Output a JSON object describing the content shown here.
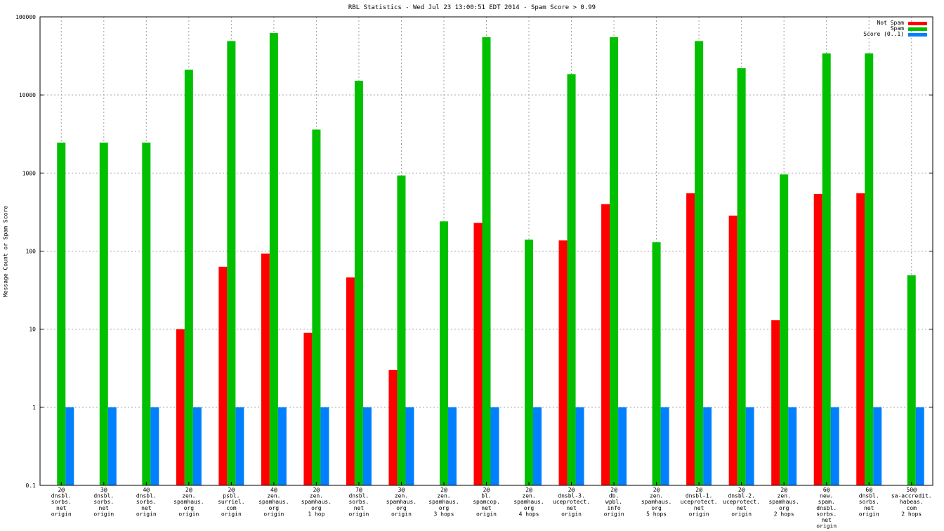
{
  "chart_data": {
    "type": "bar",
    "title": "RBL Statistics - Wed Jul 23 13:00:51 EDT 2014 - Spam Score > 0.99",
    "ylabel": "Message Count or Spam Score",
    "xlabel": "",
    "yscale": "log",
    "ylim": [
      0.1,
      100000
    ],
    "yticks": [
      "0.1",
      "1",
      "10",
      "100",
      "1000",
      "10000",
      "100000"
    ],
    "grid": true,
    "legend_position": "top-right",
    "categories": [
      "2@ dnsbl. sorbs. net origin",
      "3@ dnsbl. sorbs. net origin",
      "4@ dnsbl. sorbs. net origin",
      "2@ zen. spamhaus. org origin",
      "2@ psbl. surriel. com origin",
      "4@ zen. spamhaus. org origin",
      "2@ zen. spamhaus. org 1 hop",
      "7@ dnsbl. sorbs. net origin",
      "3@ zen. spamhaus. org origin",
      "2@ zen. spamhaus. org 3 hops",
      "2@ bl. spamcop. net origin",
      "2@ zen. spamhaus. org 4 hops",
      "2@ dnsbl-3. uceprotect. net origin",
      "2@ db. wpbl. info origin",
      "2@ zen. spamhaus. org 5 hops",
      "2@ dnsbl-1. uceprotect. net origin",
      "2@ dnsbl-2. uceprotect. net origin",
      "2@ zen. spamhaus. org 2 hops",
      "6@ new. spam. dnsbl. sorbs. net origin",
      "6@ dnsbl. sorbs. net origin",
      "50@ sa-accredit. habeas. com 2 hops"
    ],
    "category_lines": [
      [
        "2@",
        "dnsbl.",
        "sorbs.",
        "net",
        "origin"
      ],
      [
        "3@",
        "dnsbl.",
        "sorbs.",
        "net",
        "origin"
      ],
      [
        "4@",
        "dnsbl.",
        "sorbs.",
        "net",
        "origin"
      ],
      [
        "2@",
        "zen.",
        "spamhaus.",
        "org",
        "origin"
      ],
      [
        "2@",
        "psbl.",
        "surriel.",
        "com",
        "origin"
      ],
      [
        "4@",
        "zen.",
        "spamhaus.",
        "org",
        "origin"
      ],
      [
        "2@",
        "zen.",
        "spamhaus.",
        "org",
        "1 hop"
      ],
      [
        "7@",
        "dnsbl.",
        "sorbs.",
        "net",
        "origin"
      ],
      [
        "3@",
        "zen.",
        "spamhaus.",
        "org",
        "origin"
      ],
      [
        "2@",
        "zen.",
        "spamhaus.",
        "org",
        "3 hops"
      ],
      [
        "2@",
        "bl.",
        "spamcop.",
        "net",
        "origin"
      ],
      [
        "2@",
        "zen.",
        "spamhaus.",
        "org",
        "4 hops"
      ],
      [
        "2@",
        "dnsbl-3.",
        "uceprotect.",
        "net",
        "origin"
      ],
      [
        "2@",
        "db.",
        "wpbl.",
        "info",
        "origin"
      ],
      [
        "2@",
        "zen.",
        "spamhaus.",
        "org",
        "5 hops"
      ],
      [
        "2@",
        "dnsbl-1.",
        "uceprotect.",
        "net",
        "origin"
      ],
      [
        "2@",
        "dnsbl-2.",
        "uceprotect.",
        "net",
        "origin"
      ],
      [
        "2@",
        "zen.",
        "spamhaus.",
        "org",
        "2 hops"
      ],
      [
        "6@",
        "new.",
        "spam.",
        "dnsbl.",
        "sorbs.",
        "net",
        "origin"
      ],
      [
        "6@",
        "dnsbl.",
        "sorbs.",
        "net",
        "origin"
      ],
      [
        "50@",
        "sa-accredit.",
        "habeas.",
        "com",
        "2 hops"
      ]
    ],
    "series": [
      {
        "name": "Not Spam",
        "color": "#ff0000",
        "values": [
          null,
          null,
          null,
          10,
          63,
          93,
          9,
          46,
          3,
          null,
          230,
          null,
          137,
          400,
          null,
          550,
          285,
          13,
          540,
          550,
          null
        ]
      },
      {
        "name": "Spam",
        "color": "#00c000",
        "values": [
          2450,
          2450,
          2450,
          21000,
          49000,
          62000,
          3600,
          15200,
          930,
          240,
          55000,
          140,
          18500,
          55000,
          130,
          49000,
          22000,
          960,
          34000,
          34000,
          49
        ]
      },
      {
        "name": "Score (0..1)",
        "color": "#0080ff",
        "values": [
          1,
          1,
          1,
          1,
          1,
          1,
          1,
          1,
          1,
          1,
          1,
          1,
          1,
          1,
          1,
          1,
          1,
          1,
          1,
          1,
          1
        ]
      }
    ]
  }
}
